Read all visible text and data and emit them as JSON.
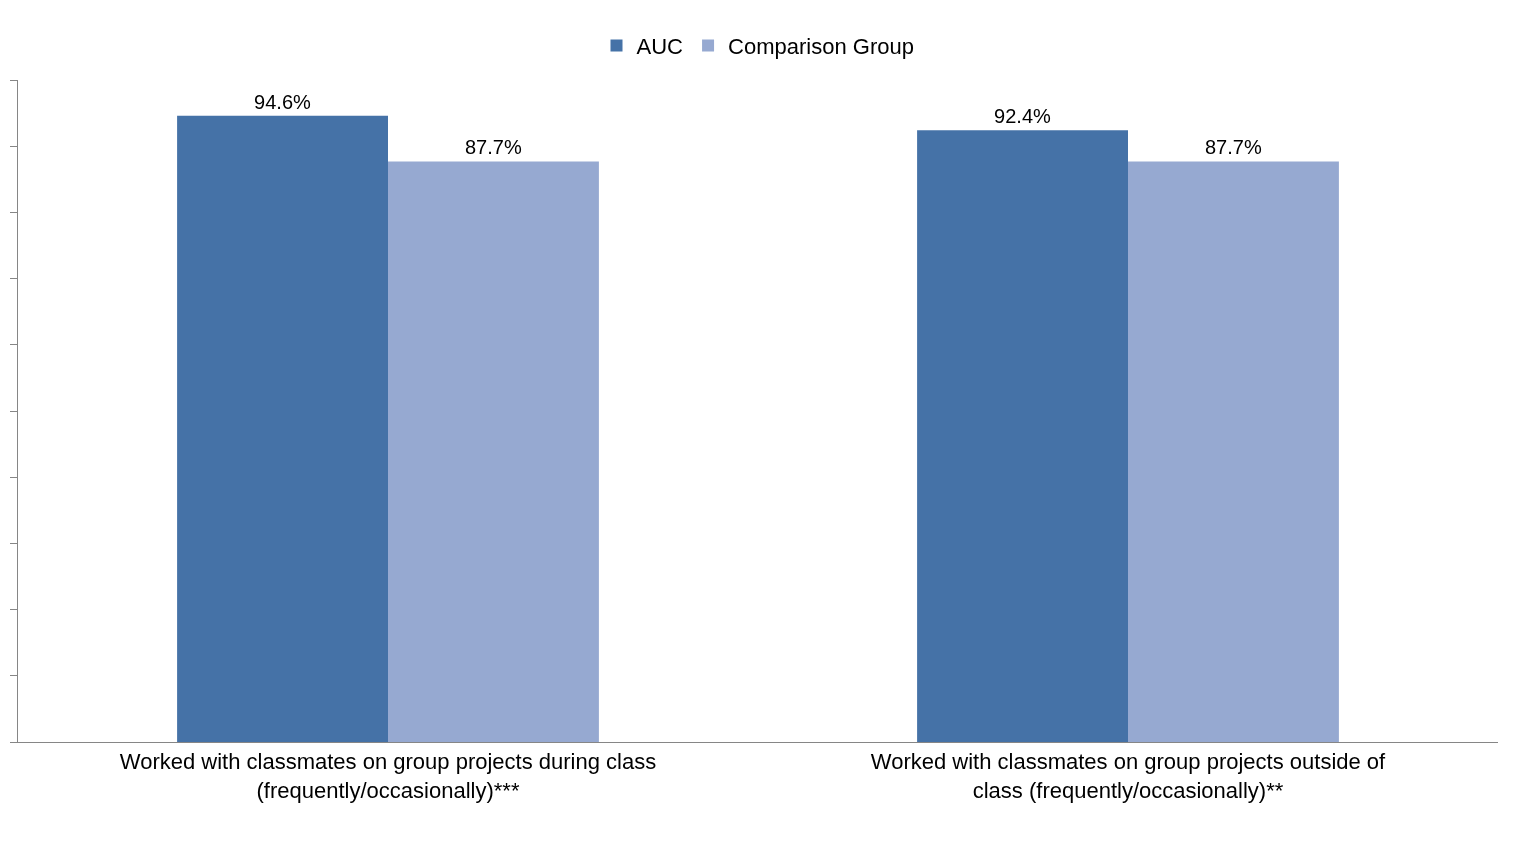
{
  "chart_data": {
    "type": "bar",
    "categories": [
      "Worked with classmates on group projects during class (frequently/occasionally)***",
      "Worked with classmates on group projects outside of class (frequently/occasionally)**"
    ],
    "series": [
      {
        "name": "AUC",
        "color": "#4572a7",
        "values": [
          94.6,
          92.4
        ],
        "value_labels": [
          "94.6%",
          "92.4%"
        ]
      },
      {
        "name": "Comparison Group",
        "color": "#96a9d1",
        "values": [
          87.7,
          87.7
        ],
        "value_labels": [
          "87.7%",
          "87.7%"
        ]
      }
    ],
    "ylim": [
      0,
      100
    ],
    "yticks": [
      {
        "value": 0,
        "label": null
      },
      {
        "value": 10,
        "label": null
      },
      {
        "value": 20,
        "label": null
      },
      {
        "value": 30,
        "label": null
      },
      {
        "value": 40,
        "label": null
      },
      {
        "value": 50,
        "label": null
      },
      {
        "value": 60,
        "label": null
      },
      {
        "value": 70,
        "label": null
      },
      {
        "value": 80,
        "label": null
      },
      {
        "value": 90,
        "label": null
      },
      {
        "value": 100,
        "label": null
      }
    ],
    "tick_labels": "x",
    "legend": "top"
  }
}
